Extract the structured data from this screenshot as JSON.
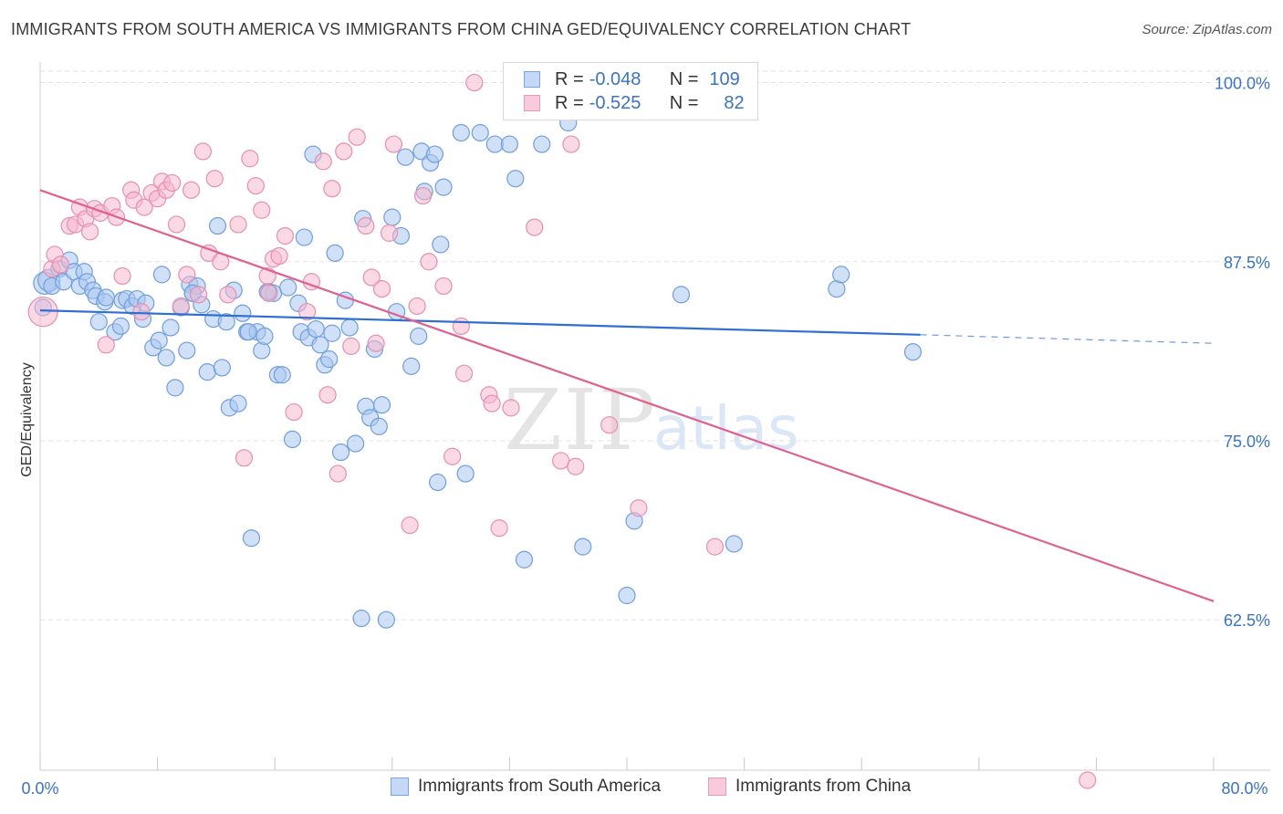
{
  "header": {
    "title": "IMMIGRANTS FROM SOUTH AMERICA VS IMMIGRANTS FROM CHINA GED/EQUIVALENCY CORRELATION CHART",
    "source": "Source: ZipAtlas.com"
  },
  "legend": {
    "series1": {
      "r_label": "R =",
      "r_value": "-0.048",
      "n_label": "N =",
      "n_value": "109"
    },
    "series2": {
      "r_label": "R =",
      "r_value": "-0.525",
      "n_label": "N =",
      "n_value": "82"
    }
  },
  "watermark": {
    "zip": "ZIP",
    "atlas": "atlas"
  },
  "colors": {
    "blue_fill": "#a9c6ef",
    "blue_stroke": "#6f9ee0",
    "blue_line": "#2f6fd0",
    "pink_fill": "#f5b8cd",
    "pink_stroke": "#e68fb0",
    "pink_line": "#e0608f",
    "tick_text": "#3a72c8",
    "grid": "#e2e2e2"
  },
  "chart_data": {
    "type": "scatter",
    "title": "IMMIGRANTS FROM SOUTH AMERICA VS IMMIGRANTS FROM CHINA GED/EQUIVALENCY CORRELATION CHART",
    "xlabel": "",
    "ylabel": "GED/Equivalency",
    "xlim": [
      0,
      80
    ],
    "ylim": [
      52.0,
      100.8
    ],
    "x_tick_labels": [
      "0.0%",
      "80.0%"
    ],
    "y_ticks": [
      62.5,
      75.0,
      87.5,
      100.0
    ],
    "y_tick_labels": [
      "62.5%",
      "75.0%",
      "87.5%",
      "100.0%"
    ],
    "grid": true,
    "series": [
      {
        "name": "Immigrants from South America",
        "color": "blue",
        "trend": {
          "x": [
            0,
            60
          ],
          "y": [
            84.1,
            82.4
          ],
          "dashed_to": [
            80,
            81.8
          ]
        },
        "points": [
          [
            0.3,
            86.0
          ],
          [
            0.6,
            86.2
          ],
          [
            0.8,
            85.8
          ],
          [
            1.3,
            87.0
          ],
          [
            1.6,
            86.1
          ],
          [
            2.0,
            87.6
          ],
          [
            2.3,
            86.8
          ],
          [
            2.7,
            85.8
          ],
          [
            3.0,
            86.8
          ],
          [
            3.2,
            86.1
          ],
          [
            3.6,
            85.5
          ],
          [
            3.8,
            85.1
          ],
          [
            4.0,
            83.3
          ],
          [
            4.4,
            84.7
          ],
          [
            4.5,
            85.0
          ],
          [
            5.1,
            82.6
          ],
          [
            5.5,
            83.0
          ],
          [
            5.6,
            84.8
          ],
          [
            5.9,
            84.9
          ],
          [
            6.3,
            84.4
          ],
          [
            6.6,
            84.9
          ],
          [
            7.0,
            83.5
          ],
          [
            7.2,
            84.6
          ],
          [
            7.7,
            81.5
          ],
          [
            8.1,
            82.0
          ],
          [
            8.3,
            86.6
          ],
          [
            8.6,
            80.8
          ],
          [
            8.9,
            82.9
          ],
          [
            9.2,
            78.7
          ],
          [
            9.6,
            84.3
          ],
          [
            10.0,
            81.3
          ],
          [
            10.2,
            85.9
          ],
          [
            10.4,
            85.3
          ],
          [
            10.7,
            85.8
          ],
          [
            11.0,
            84.5
          ],
          [
            11.4,
            79.8
          ],
          [
            11.8,
            83.5
          ],
          [
            12.1,
            90.0
          ],
          [
            12.4,
            80.1
          ],
          [
            12.7,
            83.3
          ],
          [
            12.9,
            77.3
          ],
          [
            13.2,
            85.5
          ],
          [
            13.5,
            77.6
          ],
          [
            13.8,
            83.9
          ],
          [
            14.1,
            82.6
          ],
          [
            14.4,
            68.2
          ],
          [
            14.8,
            82.6
          ],
          [
            15.1,
            81.3
          ],
          [
            15.3,
            82.3
          ],
          [
            15.6,
            85.4
          ],
          [
            15.9,
            85.3
          ],
          [
            16.2,
            79.6
          ],
          [
            16.5,
            79.6
          ],
          [
            16.9,
            85.7
          ],
          [
            17.2,
            75.1
          ],
          [
            17.6,
            84.6
          ],
          [
            17.8,
            82.6
          ],
          [
            18.0,
            89.2
          ],
          [
            18.3,
            82.2
          ],
          [
            18.6,
            95.0
          ],
          [
            18.8,
            82.8
          ],
          [
            19.1,
            81.7
          ],
          [
            19.4,
            80.3
          ],
          [
            19.7,
            80.7
          ],
          [
            20.1,
            88.1
          ],
          [
            20.5,
            74.2
          ],
          [
            20.8,
            84.8
          ],
          [
            21.1,
            82.9
          ],
          [
            21.5,
            74.8
          ],
          [
            21.9,
            62.6
          ],
          [
            22.0,
            90.5
          ],
          [
            22.2,
            77.4
          ],
          [
            22.5,
            76.6
          ],
          [
            22.8,
            81.4
          ],
          [
            23.1,
            76.0
          ],
          [
            23.3,
            77.5
          ],
          [
            23.6,
            62.5
          ],
          [
            24.0,
            90.6
          ],
          [
            24.3,
            84.0
          ],
          [
            24.6,
            89.3
          ],
          [
            24.9,
            94.8
          ],
          [
            25.3,
            80.2
          ],
          [
            26.0,
            95.2
          ],
          [
            26.2,
            92.4
          ],
          [
            26.6,
            94.4
          ],
          [
            26.9,
            95.0
          ],
          [
            27.3,
            88.7
          ],
          [
            27.5,
            92.7
          ],
          [
            27.1,
            72.1
          ],
          [
            28.7,
            96.5
          ],
          [
            29.0,
            72.7
          ],
          [
            30.0,
            96.5
          ],
          [
            31.0,
            95.7
          ],
          [
            32.0,
            95.7
          ],
          [
            32.4,
            93.3
          ],
          [
            33.0,
            66.7
          ],
          [
            34.2,
            95.7
          ],
          [
            36.0,
            97.2
          ],
          [
            37.0,
            67.6
          ],
          [
            37.8,
            99.4
          ],
          [
            40.0,
            64.2
          ],
          [
            40.5,
            69.4
          ],
          [
            43.7,
            85.2
          ],
          [
            47.3,
            67.8
          ],
          [
            54.3,
            85.6
          ],
          [
            54.6,
            86.6
          ],
          [
            59.5,
            81.2
          ],
          [
            0.2,
            84.3
          ],
          [
            14.2,
            82.6
          ],
          [
            19.9,
            82.5
          ],
          [
            25.8,
            82.3
          ],
          [
            10.4,
            85.3
          ],
          [
            15.5,
            85.4
          ]
        ]
      },
      {
        "name": "Immigrants from China",
        "color": "pink",
        "trend": {
          "x": [
            0,
            80
          ],
          "y": [
            92.5,
            63.8
          ]
        },
        "points": [
          [
            0.2,
            84.0
          ],
          [
            0.8,
            87.0
          ],
          [
            1.0,
            88.0
          ],
          [
            1.4,
            87.3
          ],
          [
            2.0,
            90.0
          ],
          [
            2.4,
            90.1
          ],
          [
            2.7,
            91.3
          ],
          [
            3.1,
            90.5
          ],
          [
            3.4,
            89.6
          ],
          [
            3.7,
            91.2
          ],
          [
            4.1,
            90.9
          ],
          [
            4.5,
            81.7
          ],
          [
            4.9,
            91.4
          ],
          [
            5.2,
            90.6
          ],
          [
            5.6,
            86.5
          ],
          [
            6.2,
            92.5
          ],
          [
            6.4,
            91.8
          ],
          [
            6.9,
            84.0
          ],
          [
            7.1,
            91.3
          ],
          [
            7.6,
            92.3
          ],
          [
            8.0,
            91.9
          ],
          [
            8.3,
            93.1
          ],
          [
            8.6,
            92.5
          ],
          [
            9.0,
            93.0
          ],
          [
            9.3,
            90.1
          ],
          [
            9.6,
            84.4
          ],
          [
            10.0,
            86.6
          ],
          [
            10.3,
            92.5
          ],
          [
            10.8,
            85.2
          ],
          [
            11.1,
            95.2
          ],
          [
            11.5,
            88.1
          ],
          [
            11.9,
            93.3
          ],
          [
            12.3,
            87.5
          ],
          [
            12.8,
            85.2
          ],
          [
            13.5,
            90.1
          ],
          [
            13.9,
            73.8
          ],
          [
            14.3,
            94.7
          ],
          [
            14.7,
            92.8
          ],
          [
            15.1,
            91.1
          ],
          [
            15.5,
            86.5
          ],
          [
            15.9,
            87.7
          ],
          [
            16.3,
            87.9
          ],
          [
            16.7,
            89.3
          ],
          [
            17.3,
            77.0
          ],
          [
            18.2,
            84.0
          ],
          [
            18.5,
            86.1
          ],
          [
            19.3,
            94.5
          ],
          [
            19.6,
            78.2
          ],
          [
            19.9,
            92.6
          ],
          [
            20.3,
            72.7
          ],
          [
            20.7,
            95.2
          ],
          [
            21.2,
            81.6
          ],
          [
            21.6,
            96.2
          ],
          [
            22.2,
            90.0
          ],
          [
            22.6,
            86.4
          ],
          [
            22.9,
            81.8
          ],
          [
            23.3,
            85.6
          ],
          [
            23.8,
            89.5
          ],
          [
            24.1,
            95.7
          ],
          [
            25.2,
            69.1
          ],
          [
            25.7,
            84.4
          ],
          [
            26.1,
            92.1
          ],
          [
            26.5,
            87.5
          ],
          [
            27.5,
            85.8
          ],
          [
            28.1,
            73.9
          ],
          [
            28.7,
            83.0
          ],
          [
            28.9,
            79.7
          ],
          [
            29.6,
            100.0
          ],
          [
            30.6,
            78.2
          ],
          [
            30.8,
            77.6
          ],
          [
            31.3,
            68.9
          ],
          [
            32.1,
            77.3
          ],
          [
            32.7,
            100.0
          ],
          [
            33.7,
            89.9
          ],
          [
            35.5,
            73.6
          ],
          [
            36.2,
            95.7
          ],
          [
            36.5,
            73.2
          ],
          [
            38.8,
            76.1
          ],
          [
            40.8,
            70.3
          ],
          [
            46.0,
            67.6
          ],
          [
            71.4,
            51.3
          ],
          [
            15.6,
            85.3
          ]
        ]
      }
    ]
  },
  "bottom_legend": {
    "items": [
      "Immigrants from South America",
      "Immigrants from China"
    ]
  }
}
